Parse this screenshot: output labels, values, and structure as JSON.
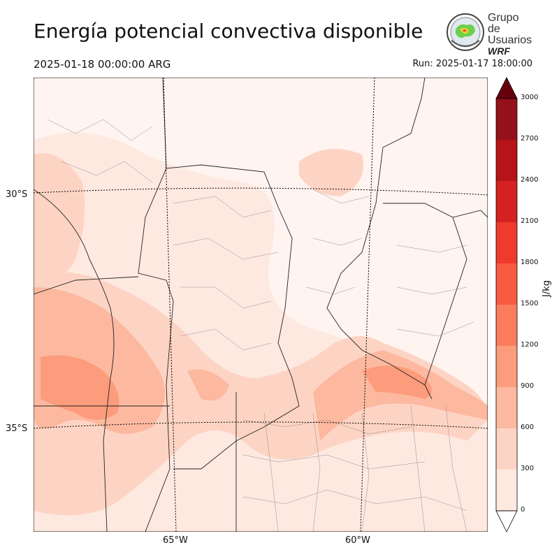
{
  "header": {
    "title": "Energía potencial convectiva disponible",
    "valid_time": "2025-01-18 00:00:00 ARG",
    "run_time": "Run: 2025-01-17 18:00:00"
  },
  "logo": {
    "line1": "Grupo de",
    "line2": "Usuarios",
    "line3": "WRF"
  },
  "map": {
    "lat_labels": [
      "30°S",
      "35°S"
    ],
    "lon_labels": [
      "65°W",
      "60°W"
    ]
  },
  "colorbar": {
    "label": "J/kg",
    "levels": [
      0,
      300,
      600,
      900,
      1200,
      1500,
      1800,
      2100,
      2400,
      2700,
      3000
    ],
    "tick_labels": [
      "0",
      "300",
      "600",
      "900",
      "1200",
      "1500",
      "1800",
      "2100",
      "2400",
      "2700",
      "3000"
    ],
    "colors": [
      "#fee9e1",
      "#fdd4c4",
      "#fcb9a0",
      "#fc9c7c",
      "#fb7d5d",
      "#f75b40",
      "#ee3b2d",
      "#d42121",
      "#b61419",
      "#94101a",
      "#67000d"
    ]
  }
}
